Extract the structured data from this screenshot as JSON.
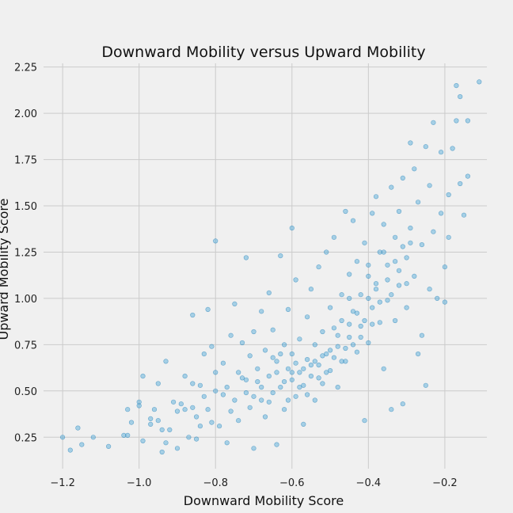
{
  "chart_data": {
    "type": "scatter",
    "title": "Downward Mobility versus Upward Mobility",
    "xlabel": "Downward Mobility Score",
    "ylabel": "Upward Mobility Score",
    "xlim": [
      -1.25,
      -0.09
    ],
    "ylim": [
      0.08,
      2.27
    ],
    "xticks": [
      -1.2,
      -1.0,
      -0.8,
      -0.6,
      -0.4,
      -0.2
    ],
    "xtick_labels": [
      "−1.2",
      "−1.0",
      "−0.8",
      "−0.6",
      "−0.4",
      "−0.2"
    ],
    "yticks": [
      0.25,
      0.5,
      0.75,
      1.0,
      1.25,
      1.5,
      1.75,
      2.0,
      2.25
    ],
    "ytick_labels": [
      "0.25",
      "0.50",
      "0.75",
      "1.00",
      "1.25",
      "1.50",
      "1.75",
      "2.00",
      "2.25"
    ],
    "grid": true,
    "legend": "none",
    "point_color": "#4aa6d8",
    "point_edge_color": "#1f7fb8",
    "points": [
      [
        -1.2,
        0.25
      ],
      [
        -1.18,
        0.18
      ],
      [
        -1.16,
        0.3
      ],
      [
        -1.15,
        0.21
      ],
      [
        -1.12,
        0.25
      ],
      [
        -1.08,
        0.2
      ],
      [
        -1.04,
        0.26
      ],
      [
        -1.03,
        0.4
      ],
      [
        -1.03,
        0.26
      ],
      [
        -1.02,
        0.33
      ],
      [
        -1.0,
        0.44
      ],
      [
        -1.0,
        0.42
      ],
      [
        -0.99,
        0.58
      ],
      [
        -0.99,
        0.23
      ],
      [
        -0.97,
        0.35
      ],
      [
        -0.97,
        0.32
      ],
      [
        -0.96,
        0.4
      ],
      [
        -0.95,
        0.34
      ],
      [
        -0.95,
        0.54
      ],
      [
        -0.94,
        0.29
      ],
      [
        -0.94,
        0.17
      ],
      [
        -0.93,
        0.66
      ],
      [
        -0.93,
        0.22
      ],
      [
        -0.92,
        0.29
      ],
      [
        -0.91,
        0.44
      ],
      [
        -0.9,
        0.39
      ],
      [
        -0.9,
        0.19
      ],
      [
        -0.89,
        0.43
      ],
      [
        -0.88,
        0.58
      ],
      [
        -0.88,
        0.4
      ],
      [
        -0.87,
        0.25
      ],
      [
        -0.86,
        0.91
      ],
      [
        -0.86,
        0.54
      ],
      [
        -0.86,
        0.41
      ],
      [
        -0.85,
        0.36
      ],
      [
        -0.85,
        0.24
      ],
      [
        -0.84,
        0.31
      ],
      [
        -0.84,
        0.53
      ],
      [
        -0.83,
        0.7
      ],
      [
        -0.83,
        0.47
      ],
      [
        -0.82,
        0.94
      ],
      [
        -0.82,
        0.4
      ],
      [
        -0.81,
        0.33
      ],
      [
        -0.81,
        0.74
      ],
      [
        -0.8,
        1.31
      ],
      [
        -0.8,
        0.6
      ],
      [
        -0.8,
        0.5
      ],
      [
        -0.79,
        0.31
      ],
      [
        -0.78,
        0.48
      ],
      [
        -0.78,
        0.65
      ],
      [
        -0.77,
        0.22
      ],
      [
        -0.77,
        0.52
      ],
      [
        -0.76,
        0.8
      ],
      [
        -0.76,
        0.39
      ],
      [
        -0.75,
        0.97
      ],
      [
        -0.75,
        0.45
      ],
      [
        -0.74,
        0.6
      ],
      [
        -0.74,
        0.34
      ],
      [
        -0.73,
        0.57
      ],
      [
        -0.73,
        0.76
      ],
      [
        -0.72,
        1.22
      ],
      [
        -0.72,
        0.49
      ],
      [
        -0.71,
        0.69
      ],
      [
        -0.71,
        0.41
      ],
      [
        -0.7,
        0.82
      ],
      [
        -0.7,
        0.19
      ],
      [
        -0.69,
        0.55
      ],
      [
        -0.69,
        0.62
      ],
      [
        -0.68,
        0.93
      ],
      [
        -0.68,
        0.45
      ],
      [
        -0.67,
        0.36
      ],
      [
        -0.67,
        0.72
      ],
      [
        -0.66,
        1.03
      ],
      [
        -0.66,
        0.58
      ],
      [
        -0.65,
        0.49
      ],
      [
        -0.65,
        0.83
      ],
      [
        -0.64,
        0.66
      ],
      [
        -0.64,
        0.21
      ],
      [
        -0.63,
        1.23
      ],
      [
        -0.63,
        0.52
      ],
      [
        -0.62,
        0.75
      ],
      [
        -0.62,
        0.4
      ],
      [
        -0.61,
        0.62
      ],
      [
        -0.61,
        0.94
      ],
      [
        -0.6,
        1.38
      ],
      [
        -0.6,
        0.56
      ],
      [
        -0.6,
        0.7
      ],
      [
        -0.59,
        0.47
      ],
      [
        -0.59,
        1.1
      ],
      [
        -0.58,
        0.6
      ],
      [
        -0.58,
        0.78
      ],
      [
        -0.57,
        0.53
      ],
      [
        -0.57,
        0.32
      ],
      [
        -0.56,
        0.67
      ],
      [
        -0.56,
        0.9
      ],
      [
        -0.55,
        0.58
      ],
      [
        -0.55,
        1.05
      ],
      [
        -0.54,
        0.75
      ],
      [
        -0.54,
        0.45
      ],
      [
        -0.53,
        1.17
      ],
      [
        -0.53,
        0.64
      ],
      [
        -0.52,
        0.82
      ],
      [
        -0.52,
        0.54
      ],
      [
        -0.51,
        1.25
      ],
      [
        -0.51,
        0.7
      ],
      [
        -0.5,
        0.95
      ],
      [
        -0.5,
        0.61
      ],
      [
        -0.49,
        0.84
      ],
      [
        -0.49,
        1.33
      ],
      [
        -0.48,
        0.74
      ],
      [
        -0.48,
        0.52
      ],
      [
        -0.47,
        1.02
      ],
      [
        -0.47,
        0.88
      ],
      [
        -0.46,
        1.47
      ],
      [
        -0.46,
        0.66
      ],
      [
        -0.45,
        1.13
      ],
      [
        -0.45,
        0.79
      ],
      [
        -0.44,
        0.93
      ],
      [
        -0.44,
        1.42
      ],
      [
        -0.43,
        0.71
      ],
      [
        -0.43,
        1.2
      ],
      [
        -0.42,
        1.02
      ],
      [
        -0.42,
        0.85
      ],
      [
        -0.41,
        1.3
      ],
      [
        -0.41,
        0.34
      ],
      [
        -0.4,
        1.12
      ],
      [
        -0.4,
        0.76
      ],
      [
        -0.39,
        1.46
      ],
      [
        -0.39,
        0.95
      ],
      [
        -0.38,
        1.55
      ],
      [
        -0.38,
        1.08
      ],
      [
        -0.37,
        0.87
      ],
      [
        -0.37,
        1.25
      ],
      [
        -0.36,
        1.4
      ],
      [
        -0.36,
        0.62
      ],
      [
        -0.35,
        1.18
      ],
      [
        -0.35,
        0.99
      ],
      [
        -0.34,
        1.6
      ],
      [
        -0.34,
        0.4
      ],
      [
        -0.33,
        1.33
      ],
      [
        -0.33,
        0.88
      ],
      [
        -0.32,
        1.47
      ],
      [
        -0.32,
        1.07
      ],
      [
        -0.31,
        1.65
      ],
      [
        -0.31,
        0.43
      ],
      [
        -0.3,
        1.22
      ],
      [
        -0.3,
        0.95
      ],
      [
        -0.29,
        1.38
      ],
      [
        -0.29,
        1.84
      ],
      [
        -0.28,
        1.12
      ],
      [
        -0.28,
        1.7
      ],
      [
        -0.27,
        0.7
      ],
      [
        -0.27,
        1.52
      ],
      [
        -0.26,
        1.29
      ],
      [
        -0.26,
        0.8
      ],
      [
        -0.25,
        1.82
      ],
      [
        -0.25,
        0.53
      ],
      [
        -0.24,
        1.61
      ],
      [
        -0.24,
        1.05
      ],
      [
        -0.23,
        1.95
      ],
      [
        -0.23,
        1.36
      ],
      [
        -0.22,
        1.0
      ],
      [
        -0.21,
        1.79
      ],
      [
        -0.21,
        1.46
      ],
      [
        -0.2,
        1.17
      ],
      [
        -0.2,
        0.98
      ],
      [
        -0.19,
        1.56
      ],
      [
        -0.19,
        1.33
      ],
      [
        -0.18,
        1.81
      ],
      [
        -0.17,
        2.15
      ],
      [
        -0.17,
        1.96
      ],
      [
        -0.16,
        2.09
      ],
      [
        -0.16,
        1.62
      ],
      [
        -0.15,
        1.45
      ],
      [
        -0.14,
        1.66
      ],
      [
        -0.14,
        1.96
      ],
      [
        -0.11,
        2.17
      ],
      [
        -0.62,
        0.55
      ],
      [
        -0.58,
        0.52
      ],
      [
        -0.55,
        0.64
      ],
      [
        -0.57,
        0.62
      ],
      [
        -0.6,
        0.6
      ],
      [
        -0.56,
        0.48
      ],
      [
        -0.53,
        0.57
      ],
      [
        -0.61,
        0.45
      ],
      [
        -0.64,
        0.6
      ],
      [
        -0.52,
        0.69
      ],
      [
        -0.5,
        0.72
      ],
      [
        -0.48,
        0.8
      ],
      [
        -0.45,
        0.86
      ],
      [
        -0.43,
        0.92
      ],
      [
        -0.4,
        1.0
      ],
      [
        -0.38,
        1.05
      ],
      [
        -0.35,
        1.1
      ],
      [
        -0.33,
        1.2
      ],
      [
        -0.31,
        1.28
      ],
      [
        -0.29,
        1.3
      ],
      [
        -0.41,
        0.88
      ],
      [
        -0.44,
        0.75
      ],
      [
        -0.47,
        0.66
      ],
      [
        -0.65,
        0.68
      ],
      [
        -0.68,
        0.52
      ],
      [
        -0.7,
        0.47
      ],
      [
        -0.72,
        0.56
      ],
      [
        -0.66,
        0.44
      ],
      [
        -0.63,
        0.7
      ],
      [
        -0.59,
        0.65
      ],
      [
        -0.54,
        0.66
      ],
      [
        -0.51,
        0.6
      ],
      [
        -0.49,
        0.68
      ],
      [
        -0.46,
        0.73
      ],
      [
        -0.42,
        0.79
      ],
      [
        -0.39,
        0.86
      ],
      [
        -0.37,
        0.98
      ],
      [
        -0.34,
        1.02
      ],
      [
        -0.32,
        1.15
      ],
      [
        -0.3,
        1.08
      ],
      [
        -0.36,
        1.25
      ],
      [
        -0.4,
        1.18
      ],
      [
        -0.45,
        1.0
      ]
    ]
  }
}
